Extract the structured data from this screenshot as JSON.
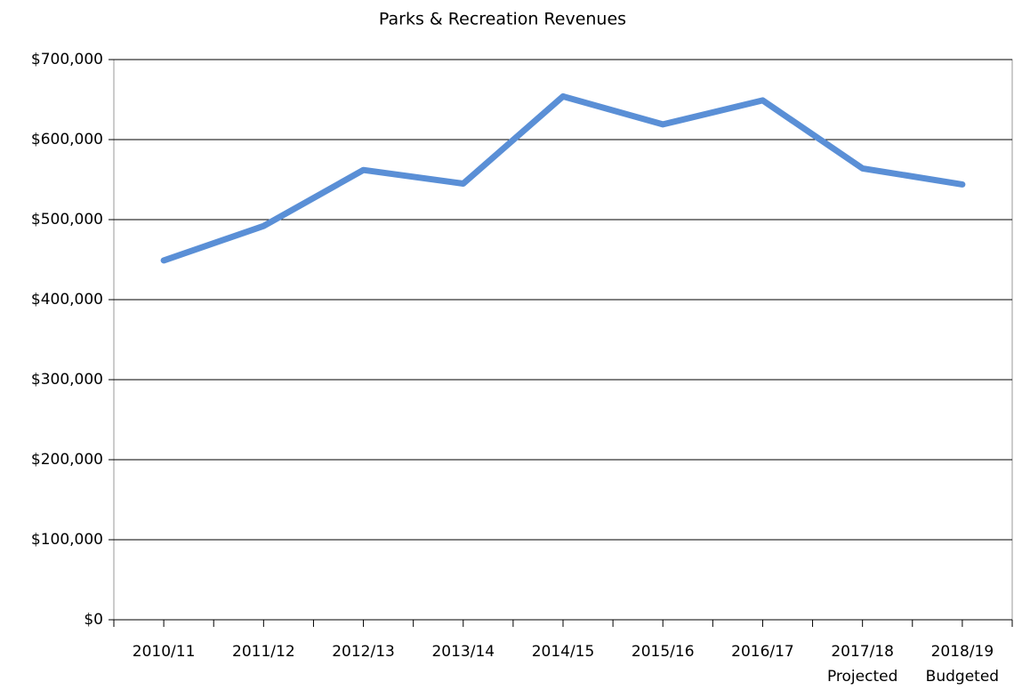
{
  "chart_data": {
    "type": "line",
    "title": "Parks & Recreation Revenues",
    "categories": [
      [
        "2010/11"
      ],
      [
        "2011/12"
      ],
      [
        "2012/13"
      ],
      [
        "2013/14"
      ],
      [
        "2014/15"
      ],
      [
        "2015/16"
      ],
      [
        "2016/17"
      ],
      [
        "2017/18",
        "Projected"
      ],
      [
        "2018/19",
        "Budgeted"
      ]
    ],
    "series": [
      {
        "color": "#5a8fd6",
        "values": [
          449000,
          492000,
          562000,
          545000,
          654000,
          619000,
          649000,
          564000,
          544000
        ]
      }
    ],
    "ylim": [
      0,
      700000
    ],
    "yticks": [
      {
        "value": 0,
        "label": "$0"
      },
      {
        "value": 100000,
        "label": "$100,000"
      },
      {
        "value": 200000,
        "label": "$200,000"
      },
      {
        "value": 300000,
        "label": "$300,000"
      },
      {
        "value": 400000,
        "label": "$400,000"
      },
      {
        "value": 500000,
        "label": "$500,000"
      },
      {
        "value": 600000,
        "label": "$600,000"
      },
      {
        "value": 700000,
        "label": "$700,000"
      }
    ],
    "grid": true
  }
}
